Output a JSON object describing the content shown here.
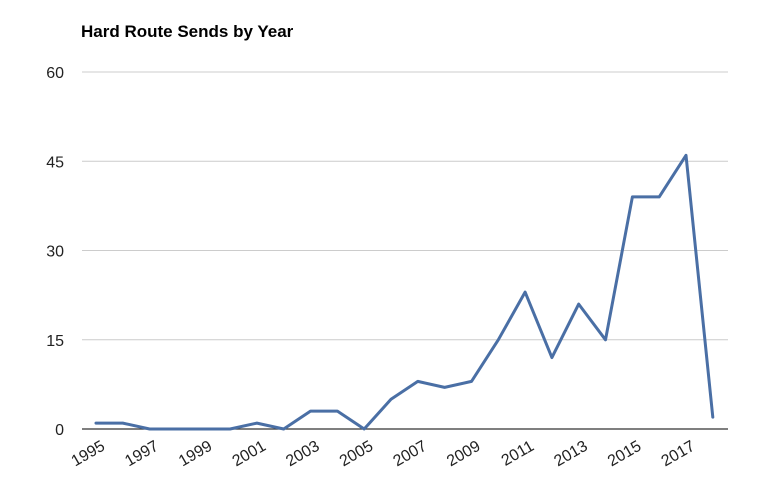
{
  "chart_data": {
    "type": "line",
    "title": "Hard Route Sends by Year",
    "xlabel": "",
    "ylabel": "",
    "x": [
      1995,
      1996,
      1997,
      1998,
      1999,
      2000,
      2001,
      2002,
      2003,
      2004,
      2005,
      2006,
      2007,
      2008,
      2009,
      2010,
      2011,
      2012,
      2013,
      2014,
      2015,
      2016,
      2017,
      2018
    ],
    "series": [
      {
        "values": [
          1,
          1,
          0,
          0,
          0,
          0,
          1,
          0,
          3,
          3,
          0,
          5,
          8,
          7,
          8,
          15,
          23,
          12,
          21,
          15,
          39,
          39,
          46,
          2
        ],
        "color": "#4a6fa5"
      }
    ],
    "x_tick_labels": [
      "1995",
      "1997",
      "1999",
      "2001",
      "2003",
      "2005",
      "2007",
      "2009",
      "2011",
      "2013",
      "2015",
      "2017"
    ],
    "y_ticks": [
      0,
      15,
      30,
      45,
      60
    ],
    "xlim": [
      1995,
      2018
    ],
    "ylim": [
      0,
      60
    ],
    "grid": true,
    "legend": "none"
  }
}
